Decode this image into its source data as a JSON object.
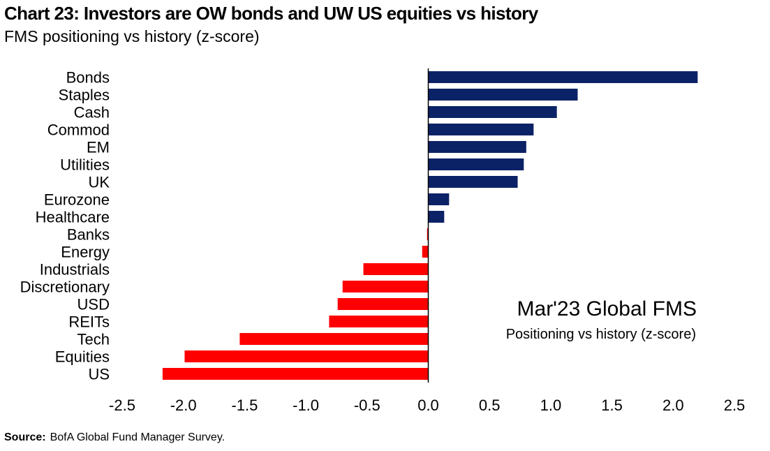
{
  "header": {
    "title": "Chart 23: Investors are OW bonds and UW US equities vs history",
    "subtitle": "FMS positioning vs history (z-score)"
  },
  "annotation": {
    "main": "Mar'23 Global FMS",
    "sub": "Positioning vs history (z-score)"
  },
  "footer": {
    "source_label": "Source:",
    "source_text": "BofA Global Fund Manager Survey."
  },
  "colors": {
    "positive": "#0c2266",
    "negative": "#ff0000",
    "axis": "#000000"
  },
  "chart_data": {
    "type": "bar",
    "orientation": "horizontal",
    "title": "Chart 23: Investors are OW bonds and UW US equities vs history",
    "subtitle": "FMS positioning vs history (z-score)",
    "categories": [
      "Bonds",
      "Staples",
      "Cash",
      "Commod",
      "EM",
      "Utilities",
      "UK",
      "Eurozone",
      "Healthcare",
      "Banks",
      "Energy",
      "Industrials",
      "Discretionary",
      "USD",
      "REITs",
      "Tech",
      "Equities",
      "US"
    ],
    "values": [
      2.2,
      1.22,
      1.05,
      0.86,
      0.8,
      0.78,
      0.73,
      0.17,
      0.13,
      -0.01,
      -0.05,
      -0.53,
      -0.7,
      -0.74,
      -0.81,
      -1.54,
      -1.99,
      -2.17
    ],
    "xlim": [
      -2.5,
      2.5
    ],
    "xticks": [
      "-2.5",
      "-2.0",
      "-1.5",
      "-1.0",
      "-0.5",
      "0.0",
      "0.5",
      "1.0",
      "1.5",
      "2.0",
      "2.5"
    ],
    "xlabel": "",
    "ylabel": "",
    "grid": false,
    "legend": "none"
  }
}
